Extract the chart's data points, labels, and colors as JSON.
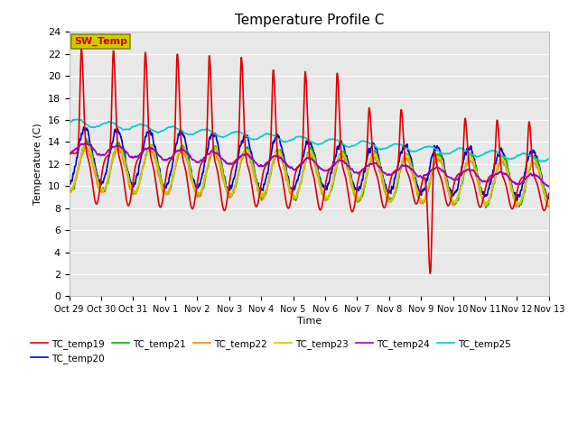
{
  "title": "Temperature Profile C",
  "xlabel": "Time",
  "ylabel": "Temperature (C)",
  "ylim": [
    0,
    24
  ],
  "yticks": [
    0,
    2,
    4,
    6,
    8,
    10,
    12,
    14,
    16,
    18,
    20,
    22,
    24
  ],
  "xtick_labels": [
    "Oct 29",
    "Oct 30",
    "Oct 31",
    "Nov 1",
    "Nov 2",
    "Nov 3",
    "Nov 4",
    "Nov 5",
    "Nov 6",
    "Nov 7",
    "Nov 8",
    "Nov 9",
    "Nov 10",
    "Nov 11",
    "Nov 12",
    "Nov 13"
  ],
  "series": {
    "TC_temp19": {
      "color": "#dd0000",
      "lw": 1.2
    },
    "TC_temp20": {
      "color": "#0000dd",
      "lw": 1.2
    },
    "TC_temp21": {
      "color": "#00bb00",
      "lw": 1.2
    },
    "TC_temp22": {
      "color": "#ff8800",
      "lw": 1.2
    },
    "TC_temp23": {
      "color": "#cccc00",
      "lw": 1.2
    },
    "TC_temp24": {
      "color": "#9900cc",
      "lw": 1.2
    },
    "TC_temp25": {
      "color": "#00cccc",
      "lw": 1.2
    }
  },
  "plot_bg": "#e8e8e8",
  "sw_temp_label": "SW_Temp",
  "sw_temp_box_color": "#cccc00",
  "sw_temp_text_color": "#cc0000",
  "n_days": 15,
  "pts_per_day": 144
}
